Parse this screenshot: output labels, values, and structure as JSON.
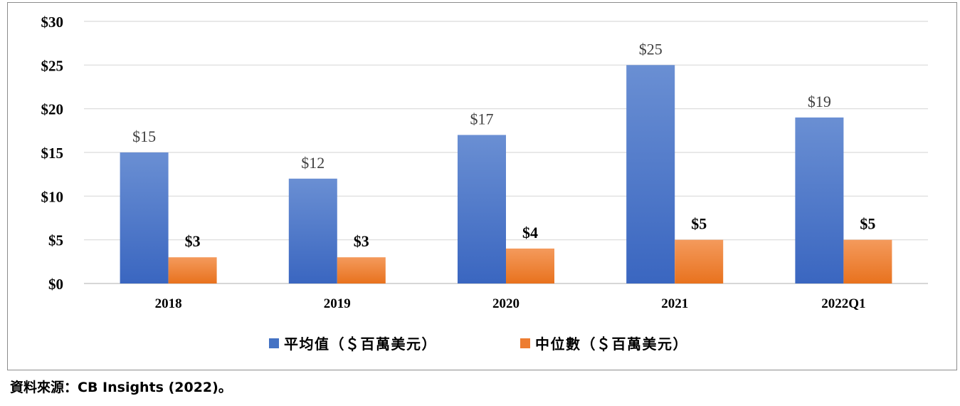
{
  "chart_data": {
    "type": "bar",
    "categories": [
      "2018",
      "2019",
      "2020",
      "2021",
      "2022Q1"
    ],
    "series": [
      {
        "name": "平均值（＄百萬美元）",
        "values": [
          15,
          12,
          17,
          25,
          19
        ],
        "labels": [
          "$15",
          "$12",
          "$17",
          "$25",
          "$19"
        ],
        "color": "#4472C4"
      },
      {
        "name": "中位數（＄百萬美元）",
        "values": [
          3,
          3,
          4,
          5,
          5
        ],
        "labels": [
          "$3",
          "$3",
          "$4",
          "$5",
          "$5"
        ],
        "color": "#ED7D31"
      }
    ],
    "yticks": [
      "$0",
      "$5",
      "$10",
      "$15",
      "$20",
      "$25",
      "$30"
    ],
    "ylim": [
      0,
      30
    ],
    "grid": true,
    "legend_position": "bottom"
  },
  "source": "資料來源：CB Insights (2022)。"
}
